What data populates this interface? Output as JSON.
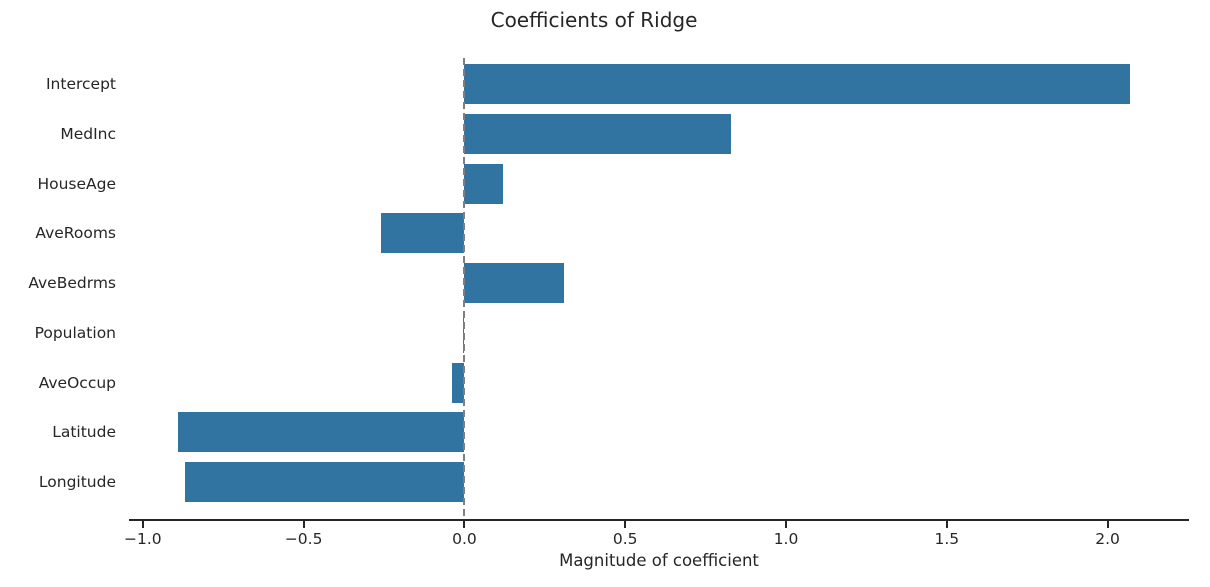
{
  "chart_data": {
    "type": "bar",
    "orientation": "horizontal",
    "title": "Coefficients of Ridge",
    "xlabel": "Magnitude of coefficient",
    "ylabel": "",
    "categories": [
      "Intercept",
      "MedInc",
      "HouseAge",
      "AveRooms",
      "AveBedrms",
      "Population",
      "AveOccup",
      "Latitude",
      "Longitude"
    ],
    "values": [
      2.07,
      0.83,
      0.12,
      -0.26,
      0.31,
      -0.004,
      -0.04,
      -0.89,
      -0.87
    ],
    "xticks": [
      -1.0,
      -0.5,
      0.0,
      0.5,
      1.0,
      1.5,
      2.0
    ],
    "xtick_labels": [
      "−1.0",
      "−0.5",
      "0.0",
      "0.5",
      "1.0",
      "1.5",
      "2.0"
    ],
    "xlim": [
      -1.04,
      2.25
    ],
    "grid": false,
    "legend": null,
    "bar_color": "#3274a1",
    "axis_color": "#262626",
    "text_color": "#262626",
    "zero_line": {
      "x": 0.0,
      "style": "dashed",
      "color": "#7f7f7f"
    },
    "background_color": "#ffffff"
  }
}
